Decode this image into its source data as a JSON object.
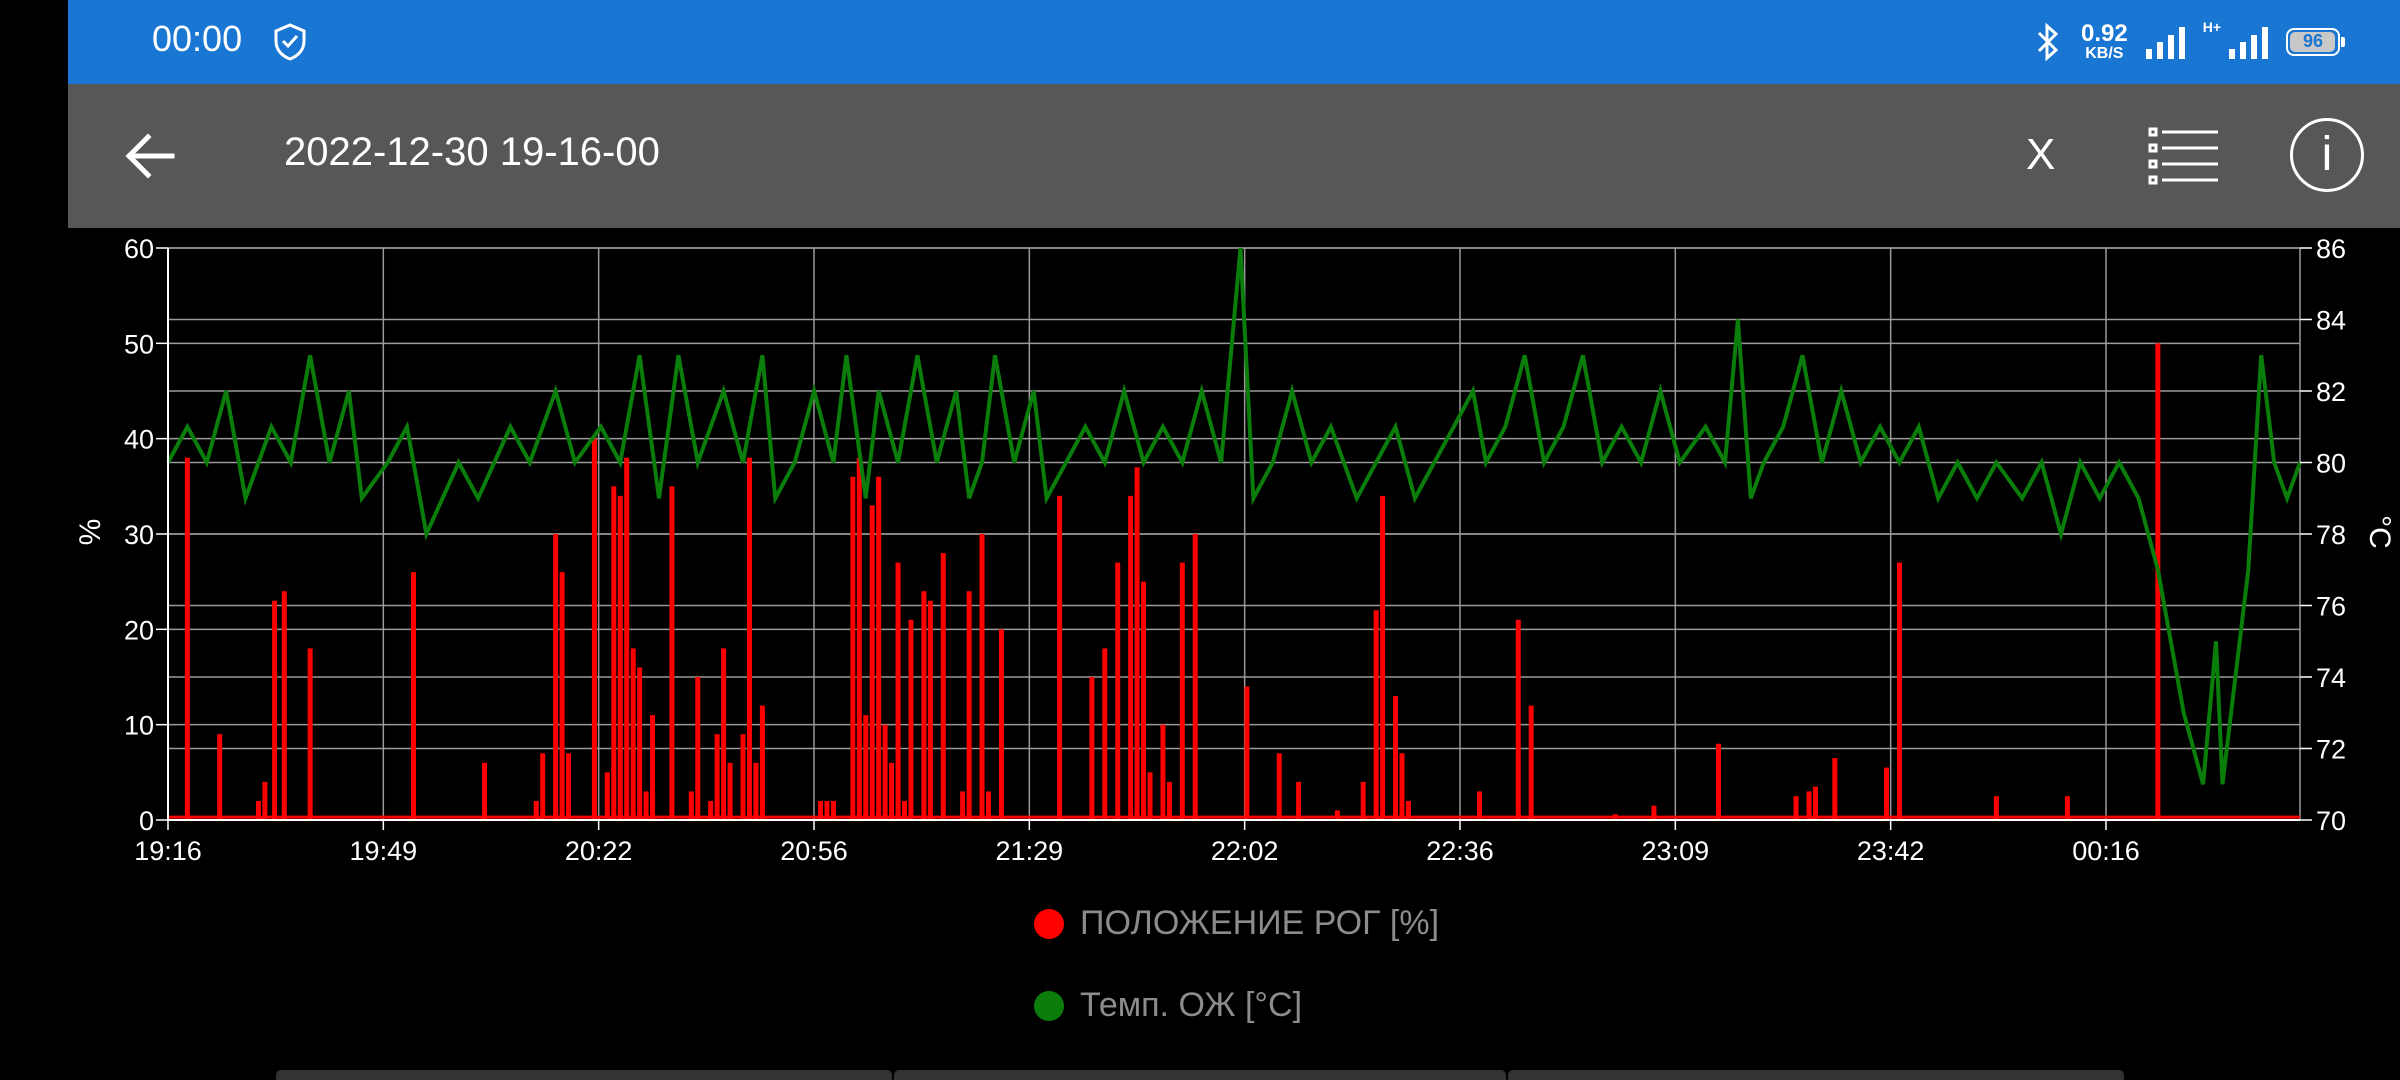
{
  "status": {
    "time": "00:00",
    "speed_value": "0.92",
    "speed_unit": "KB/S",
    "network": "H+",
    "battery": "96"
  },
  "toolbar": {
    "title": "2022-12-30 19-16-00",
    "close_label": "X"
  },
  "icons": {
    "back": "arrow-left-icon",
    "list": "list-icon",
    "info": "info-icon",
    "shield": "shield-icon",
    "bluetooth": "bluetooth-icon"
  },
  "colors": {
    "status_bar": "#1976d2",
    "toolbar": "#575757",
    "series_red": "#ff0000",
    "series_green": "#0a7d0a"
  },
  "chart_data": {
    "type": "line",
    "x_ticks": [
      "19:16",
      "19:49",
      "20:22",
      "20:56",
      "21:29",
      "22:02",
      "22:36",
      "23:09",
      "23:42",
      "00:16"
    ],
    "x_range_minutes": [
      0,
      330
    ],
    "y_left": {
      "label": "%",
      "range": [
        0,
        60
      ],
      "ticks": [
        "0",
        "10",
        "20",
        "30",
        "40",
        "50",
        "60"
      ]
    },
    "y_right": {
      "label": "°C",
      "range": [
        70,
        86
      ],
      "ticks": [
        "70",
        "72",
        "74",
        "76",
        "78",
        "80",
        "82",
        "84",
        "86"
      ]
    },
    "grid": true,
    "legend_placement": "bottom",
    "series": [
      {
        "name": "ПОЛОЖЕНИЕ РОГ [%]",
        "axis": "left",
        "color": "#ff0000",
        "style": "spikes",
        "baseline": 0.3,
        "points": [
          [
            3,
            38
          ],
          [
            8,
            9
          ],
          [
            14,
            2
          ],
          [
            15,
            4
          ],
          [
            16.5,
            23
          ],
          [
            18,
            24
          ],
          [
            22,
            18
          ],
          [
            38,
            26
          ],
          [
            49,
            6
          ],
          [
            57,
            2
          ],
          [
            58,
            7
          ],
          [
            60,
            30
          ],
          [
            61,
            26
          ],
          [
            62,
            7
          ],
          [
            66,
            40
          ],
          [
            68,
            5
          ],
          [
            69,
            35
          ],
          [
            70,
            34
          ],
          [
            71,
            38
          ],
          [
            72,
            18
          ],
          [
            73,
            16
          ],
          [
            74,
            3
          ],
          [
            75,
            11
          ],
          [
            78,
            35
          ],
          [
            81,
            3
          ],
          [
            82,
            15
          ],
          [
            84,
            2
          ],
          [
            85,
            9
          ],
          [
            86,
            18
          ],
          [
            87,
            6
          ],
          [
            89,
            9
          ],
          [
            90,
            38
          ],
          [
            91,
            6
          ],
          [
            92,
            12
          ],
          [
            101,
            2
          ],
          [
            102,
            2
          ],
          [
            103,
            2
          ],
          [
            106,
            36
          ],
          [
            107,
            38
          ],
          [
            108,
            11
          ],
          [
            109,
            33
          ],
          [
            110,
            36
          ],
          [
            111,
            10
          ],
          [
            112,
            6
          ],
          [
            113,
            27
          ],
          [
            114,
            2
          ],
          [
            115,
            21
          ],
          [
            117,
            24
          ],
          [
            118,
            23
          ],
          [
            120,
            28
          ],
          [
            123,
            3
          ],
          [
            124,
            24
          ],
          [
            126,
            30
          ],
          [
            127,
            3
          ],
          [
            129,
            20
          ],
          [
            138,
            34
          ],
          [
            143,
            15
          ],
          [
            145,
            18
          ],
          [
            147,
            27
          ],
          [
            149,
            34
          ],
          [
            150,
            37
          ],
          [
            151,
            25
          ],
          [
            152,
            5
          ],
          [
            154,
            10
          ],
          [
            155,
            4
          ],
          [
            157,
            27
          ],
          [
            159,
            30
          ],
          [
            167,
            14
          ],
          [
            172,
            7
          ],
          [
            175,
            4
          ],
          [
            181,
            1
          ],
          [
            185,
            4
          ],
          [
            187,
            22
          ],
          [
            188,
            34
          ],
          [
            190,
            13
          ],
          [
            191,
            7
          ],
          [
            192,
            2
          ],
          [
            203,
            3
          ],
          [
            209,
            21
          ],
          [
            211,
            12
          ],
          [
            224,
            0.6
          ],
          [
            230,
            1.5
          ],
          [
            240,
            8
          ],
          [
            252,
            2.5
          ],
          [
            254,
            3
          ],
          [
            255,
            3.5
          ],
          [
            258,
            6.5
          ],
          [
            266,
            5.5
          ],
          [
            268,
            27
          ],
          [
            283,
            2.5
          ],
          [
            294,
            2.5
          ],
          [
            308,
            50
          ]
        ]
      },
      {
        "name": "Темп. ОЖ [°C]",
        "axis": "right",
        "color": "#0a7d0a",
        "style": "line",
        "points": [
          [
            0,
            80
          ],
          [
            3,
            81
          ],
          [
            6,
            80
          ],
          [
            9,
            82
          ],
          [
            12,
            79
          ],
          [
            16,
            81
          ],
          [
            19,
            80
          ],
          [
            22,
            83
          ],
          [
            25,
            80
          ],
          [
            28,
            82
          ],
          [
            30,
            79
          ],
          [
            34,
            80
          ],
          [
            37,
            81
          ],
          [
            40,
            78
          ],
          [
            45,
            80
          ],
          [
            48,
            79
          ],
          [
            53,
            81
          ],
          [
            56,
            80
          ],
          [
            60,
            82
          ],
          [
            63,
            80
          ],
          [
            67,
            81
          ],
          [
            70,
            80
          ],
          [
            73,
            83
          ],
          [
            76,
            79
          ],
          [
            79,
            83
          ],
          [
            82,
            80
          ],
          [
            86,
            82
          ],
          [
            89,
            80
          ],
          [
            92,
            83
          ],
          [
            94,
            79
          ],
          [
            97,
            80
          ],
          [
            100,
            82
          ],
          [
            103,
            80
          ],
          [
            105,
            83
          ],
          [
            108,
            79
          ],
          [
            110,
            82
          ],
          [
            113,
            80
          ],
          [
            116,
            83
          ],
          [
            119,
            80
          ],
          [
            122,
            82
          ],
          [
            124,
            79
          ],
          [
            126,
            80
          ],
          [
            128,
            83
          ],
          [
            131,
            80
          ],
          [
            134,
            82
          ],
          [
            136,
            79
          ],
          [
            139,
            80
          ],
          [
            142,
            81
          ],
          [
            145,
            80
          ],
          [
            148,
            82
          ],
          [
            151,
            80
          ],
          [
            154,
            81
          ],
          [
            157,
            80
          ],
          [
            160,
            82
          ],
          [
            163,
            80
          ],
          [
            166,
            86
          ],
          [
            168,
            79
          ],
          [
            171,
            80
          ],
          [
            174,
            82
          ],
          [
            177,
            80
          ],
          [
            180,
            81
          ],
          [
            184,
            79
          ],
          [
            187,
            80
          ],
          [
            190,
            81
          ],
          [
            193,
            79
          ],
          [
            196,
            80
          ],
          [
            199,
            81
          ],
          [
            202,
            82
          ],
          [
            204,
            80
          ],
          [
            207,
            81
          ],
          [
            210,
            83
          ],
          [
            213,
            80
          ],
          [
            216,
            81
          ],
          [
            219,
            83
          ],
          [
            222,
            80
          ],
          [
            225,
            81
          ],
          [
            228,
            80
          ],
          [
            231,
            82
          ],
          [
            234,
            80
          ],
          [
            238,
            81
          ],
          [
            241,
            80
          ],
          [
            243,
            84
          ],
          [
            245,
            79
          ],
          [
            247,
            80
          ],
          [
            250,
            81
          ],
          [
            253,
            83
          ],
          [
            256,
            80
          ],
          [
            259,
            82
          ],
          [
            262,
            80
          ],
          [
            265,
            81
          ],
          [
            268,
            80
          ],
          [
            271,
            81
          ],
          [
            274,
            79
          ],
          [
            277,
            80
          ],
          [
            280,
            79
          ],
          [
            283,
            80
          ],
          [
            287,
            79
          ],
          [
            290,
            80
          ],
          [
            293,
            78
          ],
          [
            296,
            80
          ],
          [
            299,
            79
          ],
          [
            302,
            80
          ],
          [
            305,
            79
          ],
          [
            308,
            77
          ],
          [
            312,
            73
          ],
          [
            315,
            71
          ],
          [
            317,
            75
          ],
          [
            318,
            71
          ],
          [
            320,
            74
          ],
          [
            322,
            77
          ],
          [
            324,
            83
          ],
          [
            326,
            80
          ],
          [
            328,
            79
          ],
          [
            330,
            80
          ]
        ]
      }
    ]
  }
}
